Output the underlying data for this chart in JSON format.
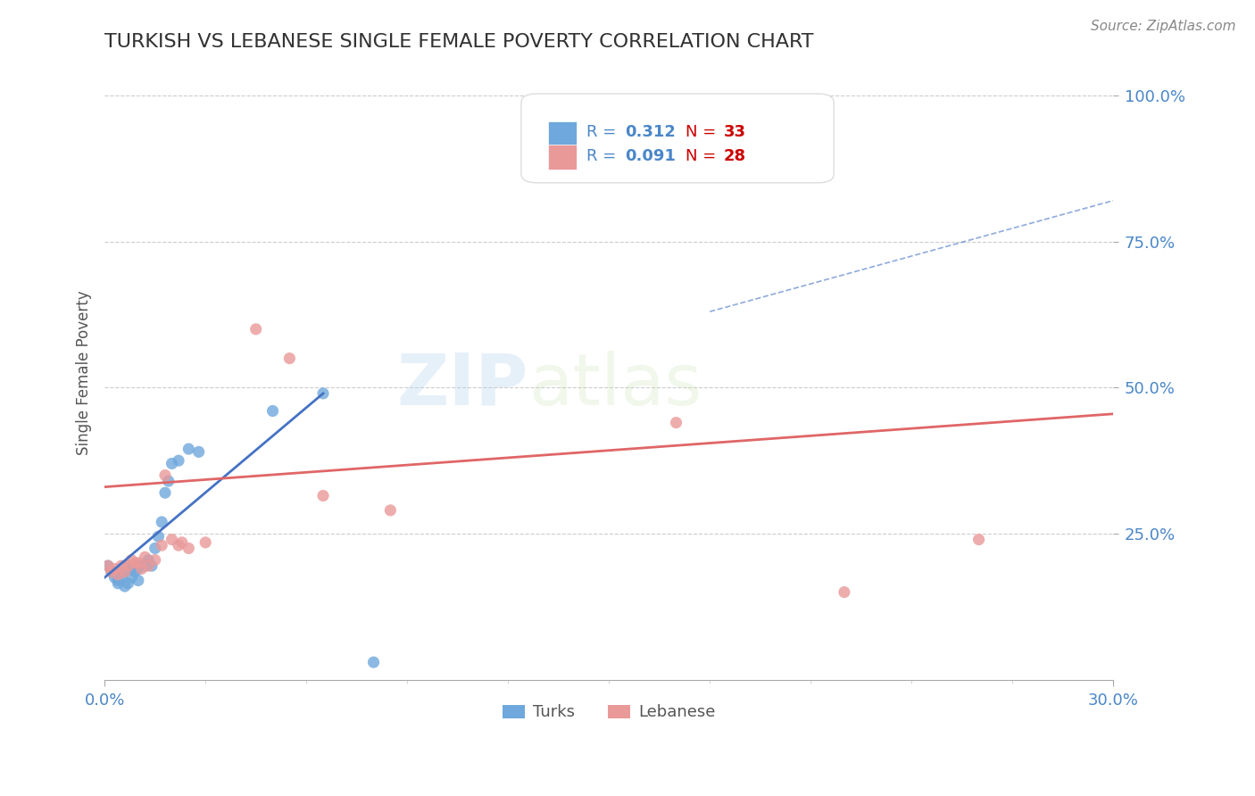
{
  "title": "TURKISH VS LEBANESE SINGLE FEMALE POVERTY CORRELATION CHART",
  "source": "Source: ZipAtlas.com",
  "ylabel": "Single Female Poverty",
  "xlim": [
    0.0,
    0.3
  ],
  "ylim": [
    0.0,
    1.05
  ],
  "turks_R": "0.312",
  "turks_N": "33",
  "lebanese_R": "0.091",
  "lebanese_N": "28",
  "turks_color": "#6fa8dc",
  "lebanese_color": "#ea9999",
  "turks_line_color": "#4472c4",
  "lebanese_line_color": "#e06666",
  "grid_color": "#cccccc",
  "watermark_zip": "ZIP",
  "watermark_atlas": "atlas",
  "turks_x": [
    0.001,
    0.002,
    0.003,
    0.004,
    0.004,
    0.005,
    0.005,
    0.006,
    0.006,
    0.007,
    0.007,
    0.008,
    0.008,
    0.009,
    0.01,
    0.01,
    0.011,
    0.012,
    0.013,
    0.013,
    0.014,
    0.015,
    0.016,
    0.017,
    0.018,
    0.019,
    0.02,
    0.022,
    0.025,
    0.028,
    0.05,
    0.065,
    0.08
  ],
  "turks_y": [
    0.195,
    0.185,
    0.175,
    0.17,
    0.165,
    0.175,
    0.185,
    0.16,
    0.185,
    0.165,
    0.195,
    0.19,
    0.175,
    0.185,
    0.17,
    0.19,
    0.195,
    0.195,
    0.2,
    0.205,
    0.195,
    0.225,
    0.245,
    0.27,
    0.32,
    0.34,
    0.37,
    0.375,
    0.395,
    0.39,
    0.46,
    0.49,
    0.03
  ],
  "lebanese_x": [
    0.001,
    0.002,
    0.003,
    0.004,
    0.005,
    0.006,
    0.007,
    0.008,
    0.009,
    0.01,
    0.011,
    0.012,
    0.013,
    0.015,
    0.017,
    0.018,
    0.02,
    0.022,
    0.023,
    0.025,
    0.03,
    0.045,
    0.055,
    0.065,
    0.085,
    0.17,
    0.22,
    0.26
  ],
  "lebanese_y": [
    0.195,
    0.185,
    0.19,
    0.18,
    0.195,
    0.185,
    0.195,
    0.205,
    0.2,
    0.2,
    0.19,
    0.21,
    0.195,
    0.205,
    0.23,
    0.35,
    0.24,
    0.23,
    0.235,
    0.225,
    0.235,
    0.6,
    0.55,
    0.315,
    0.29,
    0.44,
    0.15,
    0.24
  ],
  "turks_line_x0": 0.0,
  "turks_line_y0": 0.175,
  "turks_line_x1": 0.065,
  "turks_line_y1": 0.49,
  "lebanese_line_x0": 0.0,
  "lebanese_line_y0": 0.33,
  "lebanese_line_x1": 0.3,
  "lebanese_line_y1": 0.455,
  "dashed_line_x0": 0.18,
  "dashed_line_y0": 0.63,
  "dashed_line_x1": 0.3,
  "dashed_line_y1": 0.82,
  "background_color": "#ffffff",
  "title_color": "#333333",
  "axis_label_color": "#555555",
  "tick_color": "#4a86c8",
  "legend_R_color": "#4a86c8",
  "legend_N_color": "#cc0000",
  "ytick_positions": [
    0.25,
    0.5,
    0.75,
    1.0
  ],
  "ytick_labels": [
    "25.0%",
    "50.0%",
    "75.0%",
    "100.0%"
  ]
}
